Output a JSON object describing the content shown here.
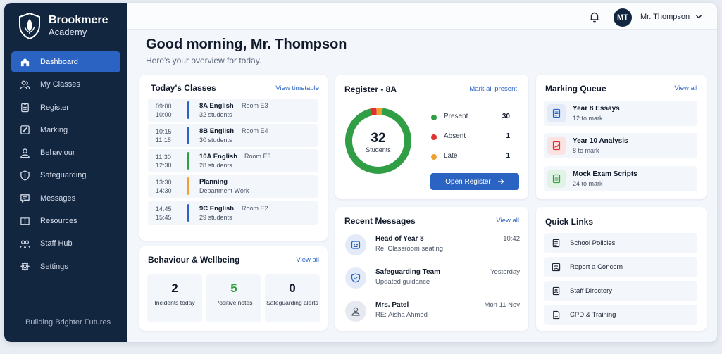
{
  "brand": {
    "line1": "Brookmere",
    "line2": "Academy",
    "tagline": "Building Brighter Futures"
  },
  "nav": [
    {
      "label": "Dashboard",
      "icon": "home-icon",
      "active": true
    },
    {
      "label": "My Classes",
      "icon": "users-icon"
    },
    {
      "label": "Register",
      "icon": "clipboard-icon"
    },
    {
      "label": "Marking",
      "icon": "edit-icon"
    },
    {
      "label": "Behaviour",
      "icon": "person-icon"
    },
    {
      "label": "Safeguarding",
      "icon": "shield-icon"
    },
    {
      "label": "Messages",
      "icon": "message-icon"
    },
    {
      "label": "Resources",
      "icon": "book-icon"
    },
    {
      "label": "Staff Hub",
      "icon": "team-icon"
    },
    {
      "label": "Settings",
      "icon": "gear-icon"
    }
  ],
  "header": {
    "initials": "MT",
    "user_name": "Mr. Thompson"
  },
  "greeting": {
    "title": "Good morning, Mr. Thompson",
    "subtitle": "Here's your overview for today."
  },
  "classes": {
    "title": "Today's Classes",
    "link": "View timetable",
    "items": [
      {
        "start": "09:00",
        "end": "10:00",
        "name": "8A English",
        "room": "Room E3",
        "info": "32 students",
        "color": "#2b63c3"
      },
      {
        "start": "10:15",
        "end": "11:15",
        "name": "8B English",
        "room": "Room E4",
        "info": "30 students",
        "color": "#2b63c3"
      },
      {
        "start": "11:30",
        "end": "12:30",
        "name": "10A English",
        "room": "Room E3",
        "info": "28 students",
        "color": "#2f9e44"
      },
      {
        "start": "13:30",
        "end": "14:30",
        "name": "Planning",
        "room": "",
        "info": "Department Work",
        "color": "#f0a030"
      },
      {
        "start": "14:45",
        "end": "15:45",
        "name": "9C English",
        "room": "Room E2",
        "info": "29 students",
        "color": "#2b63c3"
      }
    ]
  },
  "behaviour": {
    "title": "Behaviour & Wellbeing",
    "link": "View all",
    "stats": [
      {
        "value": "2",
        "label": "Incidents today",
        "color": "#111a2b"
      },
      {
        "value": "5",
        "label": "Positive notes",
        "color": "#2f9e44"
      },
      {
        "value": "0",
        "label": "Safeguarding alerts",
        "color": "#111a2b"
      }
    ]
  },
  "register": {
    "title": "Register - 8A",
    "link": "Mark all present",
    "total": "32",
    "total_label": "Students",
    "present": {
      "label": "Present",
      "value": 30,
      "color": "#2f9e44"
    },
    "absent": {
      "label": "Absent",
      "value": 1,
      "color": "#e03131"
    },
    "late": {
      "label": "Late",
      "value": 1,
      "color": "#f0a030"
    },
    "button": "Open Register"
  },
  "messages": {
    "title": "Recent Messages",
    "link": "View all",
    "items": [
      {
        "from": "Head of Year 8",
        "subject": "Re: Classroom seating",
        "when": "10:42",
        "icon": "org-icon"
      },
      {
        "from": "Safeguarding Team",
        "subject": "Updated guidance",
        "when": "Yesterday",
        "icon": "shield-icon"
      },
      {
        "from": "Mrs. Patel",
        "subject": "RE: Aisha Ahmed",
        "when": "Mon 11 Nov",
        "icon": "person-icon"
      }
    ]
  },
  "marking": {
    "title": "Marking Queue",
    "link": "View all",
    "items": [
      {
        "title": "Year 8 Essays",
        "sub": "12 to mark",
        "color": "#2b63c3",
        "bg": "#e3ebf8"
      },
      {
        "title": "Year 10 Analysis",
        "sub": "8 to mark",
        "color": "#e03131",
        "bg": "#fbe3e3"
      },
      {
        "title": "Mock Exam Scripts",
        "sub": "24 to mark",
        "color": "#2f9e44",
        "bg": "#e1f3e5"
      }
    ]
  },
  "quick_links": {
    "title": "Quick Links",
    "items": [
      {
        "label": "School Policies",
        "icon": "document-icon"
      },
      {
        "label": "Report a Concern",
        "icon": "person-alert-icon"
      },
      {
        "label": "Staff Directory",
        "icon": "directory-icon"
      },
      {
        "label": "CPD & Training",
        "icon": "certificate-icon"
      }
    ]
  }
}
